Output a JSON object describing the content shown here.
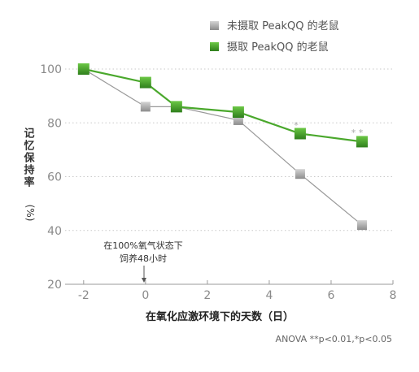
{
  "chart_data": {
    "type": "line",
    "title": "",
    "xlabel": "在氧化应激环境下的天数（日）",
    "ylabel": "记忆保持率",
    "ylabel_unit": "(%)",
    "xlim": [
      -2.6,
      8
    ],
    "ylim": [
      20,
      100
    ],
    "xticks": [
      -2,
      0,
      2,
      4,
      6,
      8
    ],
    "yticks": [
      20,
      40,
      60,
      80,
      100
    ],
    "grid": "horizontal-dotted",
    "legend_position": "top-right",
    "series": [
      {
        "name": "未摄取 PeakQQ 的老鼠",
        "color": "#a8a8a8",
        "x": [
          -2,
          0,
          1,
          3,
          5,
          7
        ],
        "values": [
          100,
          86,
          86,
          81,
          61,
          42
        ]
      },
      {
        "name": "摄取 PeakQQ 的老鼠",
        "color": "#4aa82c",
        "x": [
          -2,
          0,
          1,
          3,
          5,
          7
        ],
        "values": [
          100,
          95,
          86,
          84,
          76,
          73
        ]
      }
    ],
    "annotations": {
      "event_label_line1": "在100%氧气状态下",
      "event_label_line2": "饲养48小时",
      "event_x": 0,
      "significance": [
        {
          "x": 5,
          "label": "*"
        },
        {
          "x": 7,
          "label": "* *"
        }
      ],
      "stats_note": "ANOVA **p<0.01,*p<0.05"
    }
  }
}
